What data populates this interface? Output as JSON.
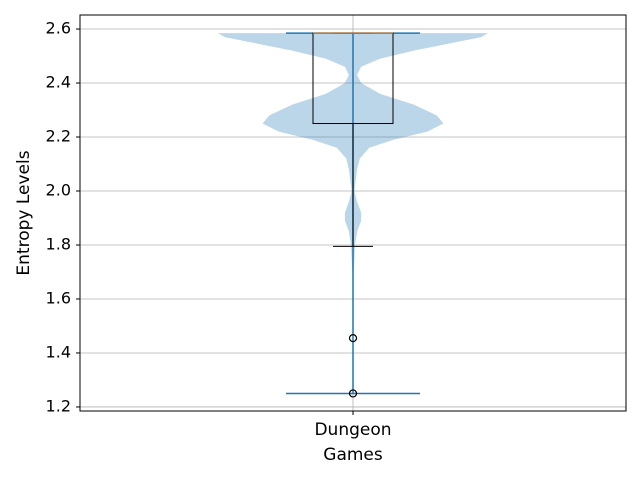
{
  "chart_data": {
    "type": "violin-box",
    "xlabel": "Games",
    "ylabel": "Entropy Levels",
    "categories": [
      "Dungeon"
    ],
    "ylim": [
      1.185,
      2.652
    ],
    "yticks": [
      1.2,
      1.4,
      1.6,
      1.8,
      {
        "value": 2,
        "label": "2.0"
      },
      2.2,
      2.4,
      2.6
    ],
    "grid": true,
    "violin": {
      "color": "#1f77b4",
      "min": 1.25,
      "max": 2.585,
      "y": [
        2.585,
        2.57,
        2.55,
        2.52,
        2.49,
        2.46,
        2.43,
        2.4,
        2.36,
        2.32,
        2.28,
        2.25,
        2.22,
        2.19,
        2.16,
        2.12,
        2.08,
        2.04,
        2.0,
        1.96,
        1.92,
        1.89,
        1.85,
        1.8,
        1.75,
        1.7,
        1.6,
        1.5,
        1.4,
        1.3,
        1.25
      ],
      "density": [
        1.0,
        0.95,
        0.75,
        0.45,
        0.2,
        0.06,
        0.03,
        0.06,
        0.2,
        0.45,
        0.62,
        0.67,
        0.55,
        0.3,
        0.12,
        0.05,
        0.03,
        0.02,
        0.01,
        0.03,
        0.06,
        0.06,
        0.03,
        0.015,
        0.01,
        0.005,
        0.002,
        0.001,
        0.001,
        0.001,
        0.001
      ]
    },
    "box": {
      "color": "#000000",
      "median_color": "#ff7f0e",
      "q1": 2.25,
      "median": 2.585,
      "q3": 2.585,
      "whisker_low": 1.795,
      "whisker_high": 2.585,
      "fliers": [
        1.455,
        1.25
      ]
    }
  }
}
